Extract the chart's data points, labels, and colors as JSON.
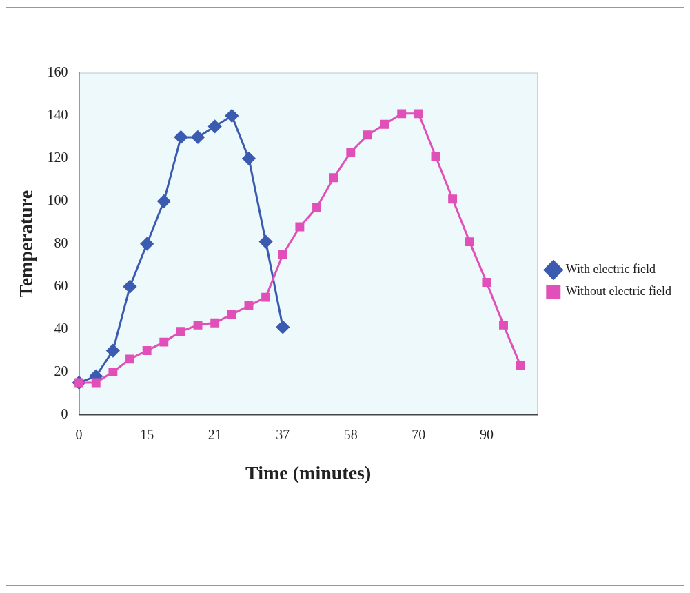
{
  "chart_data": {
    "type": "line",
    "xlabel": "Time (minutes)",
    "ylabel": "Temperature",
    "categories": [
      "0",
      null,
      null,
      null,
      "15",
      null,
      null,
      null,
      "21",
      null,
      null,
      null,
      "37",
      null,
      null,
      null,
      "58",
      null,
      null,
      null,
      "70",
      null,
      null,
      null,
      "90",
      null,
      null,
      null
    ],
    "series": [
      {
        "name": "With electric field",
        "color": "#3a5bb0",
        "marker": "diamond",
        "values": [
          15,
          18,
          30,
          60,
          80,
          100,
          130,
          130,
          135,
          140,
          120,
          81,
          41,
          null,
          null,
          null,
          null,
          null,
          null,
          null,
          null,
          null,
          null,
          null,
          null,
          null,
          null,
          null
        ]
      },
      {
        "name": "Without electric field",
        "color": "#e050b8",
        "marker": "square",
        "values": [
          15,
          15,
          20,
          26,
          30,
          34,
          39,
          42,
          43,
          47,
          51,
          55,
          75,
          88,
          97,
          111,
          123,
          131,
          136,
          141,
          141,
          121,
          101,
          81,
          62,
          42,
          23,
          null
        ]
      }
    ],
    "ylim": [
      0,
      160
    ],
    "yticks": [
      0,
      20,
      40,
      60,
      80,
      100,
      120,
      140,
      160
    ],
    "grid": false,
    "legend": "right",
    "line_style": "solid"
  }
}
